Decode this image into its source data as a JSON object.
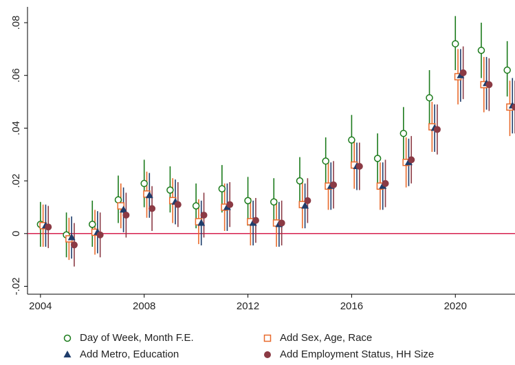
{
  "chart_data": {
    "type": "coefplot",
    "x": [
      2004,
      2005,
      2006,
      2007,
      2008,
      2009,
      2010,
      2011,
      2012,
      2013,
      2014,
      2015,
      2016,
      2017,
      2018,
      2019,
      2020,
      2021,
      2022
    ],
    "xlim": [
      2003.5,
      2022.3
    ],
    "xticks": [
      2004,
      2008,
      2012,
      2016,
      2020
    ],
    "ylim": [
      -0.023,
      0.086
    ],
    "yticks": [
      {
        "value": -0.02,
        "label": "-.02"
      },
      0,
      {
        "value": 0.02,
        "label": ".02"
      },
      {
        "value": 0.04,
        "label": ".04"
      },
      {
        "value": 0.06,
        "label": ".06"
      },
      {
        "value": 0.08,
        "label": ".08"
      }
    ],
    "reference_line": 0,
    "reference_color": "#d6204e",
    "series": [
      {
        "name": "Day of Week, Month F.E.",
        "marker": "circle",
        "color": "#1a7a1a",
        "values": [
          0.0035,
          -0.0005,
          0.0035,
          0.0128,
          0.019,
          0.0165,
          0.0105,
          0.017,
          0.0125,
          0.012,
          0.02,
          0.0275,
          0.0355,
          0.0285,
          0.038,
          0.0515,
          0.072,
          0.0695,
          0.062
        ],
        "lower": [
          -0.005,
          -0.009,
          -0.005,
          0.004,
          0.01,
          0.008,
          0.002,
          0.008,
          0.003,
          0.003,
          0.011,
          0.018,
          0.026,
          0.019,
          0.028,
          0.041,
          0.062,
          0.059,
          0.052
        ],
        "upper": [
          0.012,
          0.008,
          0.0125,
          0.022,
          0.028,
          0.0255,
          0.019,
          0.026,
          0.0215,
          0.021,
          0.029,
          0.0365,
          0.045,
          0.038,
          0.048,
          0.062,
          0.0825,
          0.08,
          0.073
        ]
      },
      {
        "name": "Add Sex, Age, Race",
        "marker": "square",
        "color": "#e8692a",
        "values": [
          0.003,
          -0.002,
          0.0005,
          0.0105,
          0.015,
          0.0125,
          0.0045,
          0.01,
          0.0045,
          0.004,
          0.011,
          0.018,
          0.026,
          0.018,
          0.027,
          0.0405,
          0.0595,
          0.0565,
          0.048
        ],
        "lower": [
          -0.005,
          -0.01,
          -0.008,
          0.002,
          0.006,
          0.004,
          -0.004,
          0.001,
          -0.0045,
          -0.005,
          0.002,
          0.009,
          0.017,
          0.009,
          0.0175,
          0.031,
          0.049,
          0.046,
          0.037
        ],
        "upper": [
          0.011,
          0.006,
          0.009,
          0.019,
          0.0235,
          0.021,
          0.013,
          0.019,
          0.0135,
          0.013,
          0.02,
          0.027,
          0.035,
          0.027,
          0.0365,
          0.05,
          0.07,
          0.067,
          0.058
        ]
      },
      {
        "name": "Add Metro, Education",
        "marker": "triangle",
        "color": "#1f3d6b",
        "values": [
          0.003,
          -0.0015,
          0.0005,
          0.009,
          0.0145,
          0.012,
          0.004,
          0.01,
          0.004,
          0.0035,
          0.0105,
          0.018,
          0.0255,
          0.018,
          0.027,
          0.04,
          0.06,
          0.057,
          0.0485
        ],
        "lower": [
          -0.005,
          -0.0095,
          -0.0075,
          0.0005,
          0.006,
          0.0035,
          -0.0045,
          0.001,
          -0.0045,
          -0.005,
          0.002,
          0.009,
          0.0165,
          0.009,
          0.018,
          0.031,
          0.05,
          0.047,
          0.038
        ],
        "upper": [
          0.011,
          0.0065,
          0.0085,
          0.0175,
          0.023,
          0.0205,
          0.0125,
          0.019,
          0.0125,
          0.012,
          0.019,
          0.027,
          0.0345,
          0.027,
          0.036,
          0.049,
          0.07,
          0.067,
          0.059
        ]
      },
      {
        "name": "Add Employment Status, HH Size",
        "marker": "dot",
        "color": "#8b3a44",
        "values": [
          0.0025,
          -0.0043,
          -0.0005,
          0.007,
          0.0095,
          0.011,
          0.007,
          0.011,
          0.005,
          0.004,
          0.0125,
          0.0185,
          0.0255,
          0.019,
          0.028,
          0.0395,
          0.061,
          0.0565,
          0.048
        ],
        "lower": [
          -0.0055,
          -0.0125,
          -0.009,
          -0.0015,
          0.001,
          0.0025,
          -0.0015,
          0.0025,
          -0.0035,
          -0.0045,
          0.004,
          0.0095,
          0.0165,
          0.01,
          0.019,
          0.03,
          0.051,
          0.0465,
          0.038
        ],
        "upper": [
          0.0105,
          0.004,
          0.008,
          0.0155,
          0.018,
          0.0195,
          0.0155,
          0.0195,
          0.0135,
          0.0125,
          0.021,
          0.0275,
          0.0345,
          0.028,
          0.037,
          0.049,
          0.071,
          0.0665,
          0.058
        ]
      }
    ]
  }
}
